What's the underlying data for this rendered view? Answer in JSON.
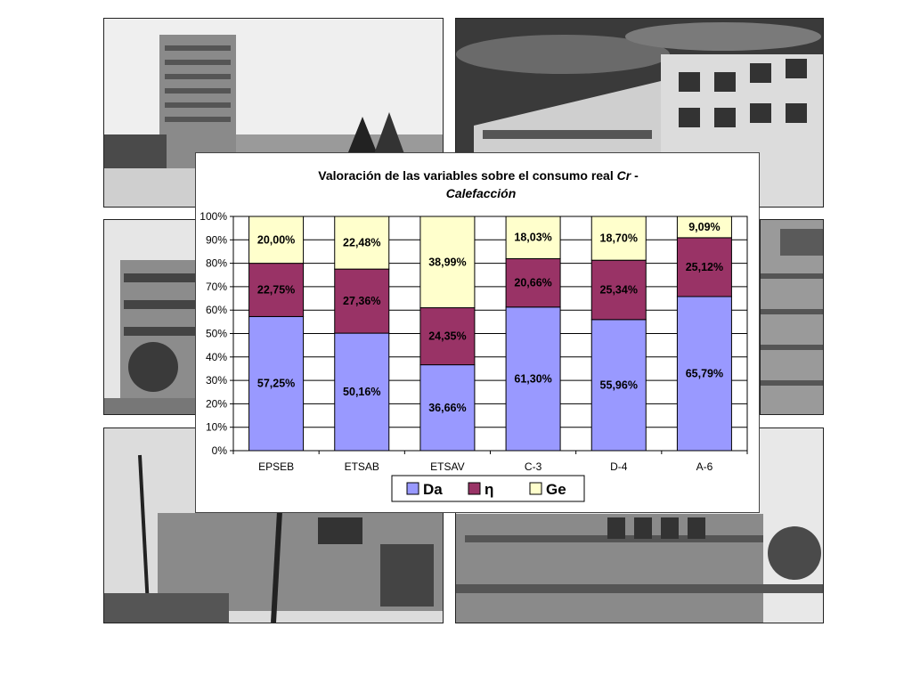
{
  "colors": {
    "Da": "#9999ff",
    "η": "#993366",
    "Ge": "#ffffcc"
  },
  "photos": [
    {
      "name": "building-photo-top-left"
    },
    {
      "name": "building-photo-top-right"
    },
    {
      "name": "building-photo-mid-left"
    },
    {
      "name": "building-photo-mid-right"
    },
    {
      "name": "building-photo-bottom-left"
    },
    {
      "name": "building-photo-bottom-right"
    }
  ],
  "chart_data": {
    "type": "bar",
    "stacked": true,
    "title_line1": "Valoración de las variables sobre el consumo real ",
    "title_italic": "Cr",
    "title_dash": " -",
    "title_line2": "Calefacción",
    "categories": [
      "EPSEB",
      "ETSAB",
      "ETSAV",
      "C-3",
      "D-4",
      "A-6"
    ],
    "y_ticks": [
      "0%",
      "10%",
      "20%",
      "30%",
      "40%",
      "50%",
      "60%",
      "70%",
      "80%",
      "90%",
      "100%"
    ],
    "ylim": [
      0,
      100
    ],
    "grid": true,
    "legend_position": "bottom",
    "series": [
      {
        "name": "Da",
        "values": [
          57.25,
          50.16,
          36.66,
          61.3,
          55.96,
          65.79
        ],
        "labels": [
          "57,25%",
          "50,16%",
          "36,66%",
          "61,30%",
          "55,96%",
          "65,79%"
        ]
      },
      {
        "name": "η",
        "values": [
          22.75,
          27.36,
          24.35,
          20.66,
          25.34,
          25.12
        ],
        "labels": [
          "22,75%",
          "27,36%",
          "24,35%",
          "20,66%",
          "25,34%",
          "25,12%"
        ]
      },
      {
        "name": "Ge",
        "values": [
          20.0,
          22.48,
          38.99,
          18.03,
          18.7,
          9.09
        ],
        "labels": [
          "20,00%",
          "22,48%",
          "38,99%",
          "18,03%",
          "18,70%",
          "9,09%"
        ]
      }
    ]
  }
}
